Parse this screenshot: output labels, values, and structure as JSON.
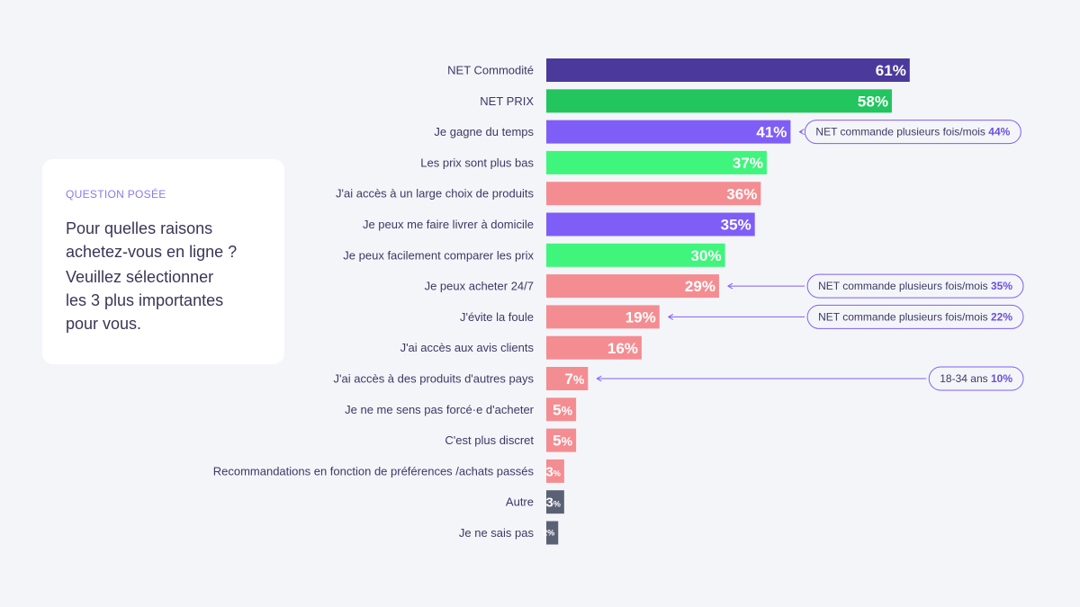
{
  "question": {
    "kicker": "QUESTION POSÉE",
    "line1": "Pour quelles raisons\nachetez-vous en ligne ?",
    "line2": "Veuillez sélectionner\nles 3 plus importantes\npour vous."
  },
  "chart_data": {
    "type": "bar",
    "orientation": "horizontal",
    "unit": "%",
    "xlim": [
      0,
      100
    ],
    "grid": false,
    "legend": "none",
    "categories": [
      "NET Commodité",
      "NET PRIX",
      "Je gagne du temps",
      "Les prix sont plus bas",
      "J'ai accès à un large choix de produits",
      "Je peux me faire livrer à domicile",
      "Je peux facilement comparer les prix",
      "Je peux acheter 24/7",
      "J'évite la foule",
      "J'ai accès aux avis clients",
      "J'ai accès à des produits d'autres pays",
      "Je ne me sens pas forcé·e d'acheter",
      "C'est plus discret",
      "Recommandations en fonction de préférences /achats passés",
      "Autre",
      "Je ne sais pas"
    ],
    "values": [
      61,
      58,
      41,
      37,
      36,
      35,
      30,
      29,
      19,
      16,
      7,
      5,
      5,
      3,
      3,
      2
    ],
    "colors": [
      "#4b3a9c",
      "#22c55e",
      "#7f5ef7",
      "#40f57c",
      "#f48d91",
      "#7f5ef7",
      "#40f57c",
      "#f48d91",
      "#f48d91",
      "#f48d91",
      "#f48d91",
      "#f48d91",
      "#f48d91",
      "#f48d91",
      "#5b6175",
      "#5b6175"
    ],
    "annotations": [
      {
        "index": 2,
        "text": "NET commande plusieurs fois/mois",
        "value": "44%"
      },
      {
        "index": 7,
        "text": "NET commande plusieurs fois/mois",
        "value": "35%"
      },
      {
        "index": 8,
        "text": "NET commande plusieurs fois/mois",
        "value": "22%"
      },
      {
        "index": 10,
        "text": "18-34 ans",
        "value": "10%"
      }
    ]
  }
}
